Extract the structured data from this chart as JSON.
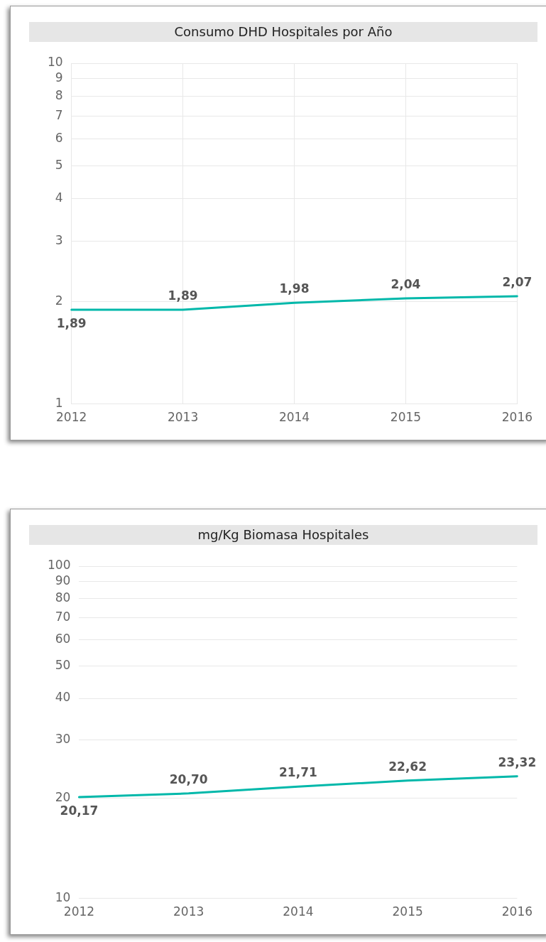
{
  "chart_data": [
    {
      "type": "line",
      "title": "Consumo DHD Hospitales por Año",
      "categories": [
        "2012",
        "2013",
        "2014",
        "2015",
        "2016"
      ],
      "series": [
        {
          "color": "#01b8aa",
          "values": [
            1.89,
            1.89,
            1.98,
            2.04,
            2.07
          ],
          "value_labels": [
            "1,89",
            "1,89",
            "1,98",
            "2,04",
            "2,07"
          ]
        }
      ],
      "log": true,
      "ylim": [
        1,
        10
      ],
      "yticks": [
        1,
        2,
        3,
        4,
        5,
        6,
        7,
        8,
        9,
        10
      ],
      "grid": true,
      "legend": false,
      "marker": "none",
      "line_style": "solid"
    },
    {
      "type": "line",
      "title": "mg/Kg Biomasa Hospitales",
      "categories": [
        "2012",
        "2013",
        "2014",
        "2015",
        "2016"
      ],
      "series": [
        {
          "color": "#01b8aa",
          "values": [
            20.17,
            20.7,
            21.71,
            22.62,
            23.32
          ],
          "value_labels": [
            "20,17",
            "20,70",
            "21,71",
            "22,62",
            "23,32"
          ]
        }
      ],
      "log": true,
      "ylim": [
        10,
        100
      ],
      "yticks": [
        10,
        20,
        30,
        40,
        50,
        60,
        70,
        80,
        90,
        100
      ],
      "grid": "y",
      "legend": false,
      "marker": "none",
      "line_style": "solid"
    }
  ]
}
